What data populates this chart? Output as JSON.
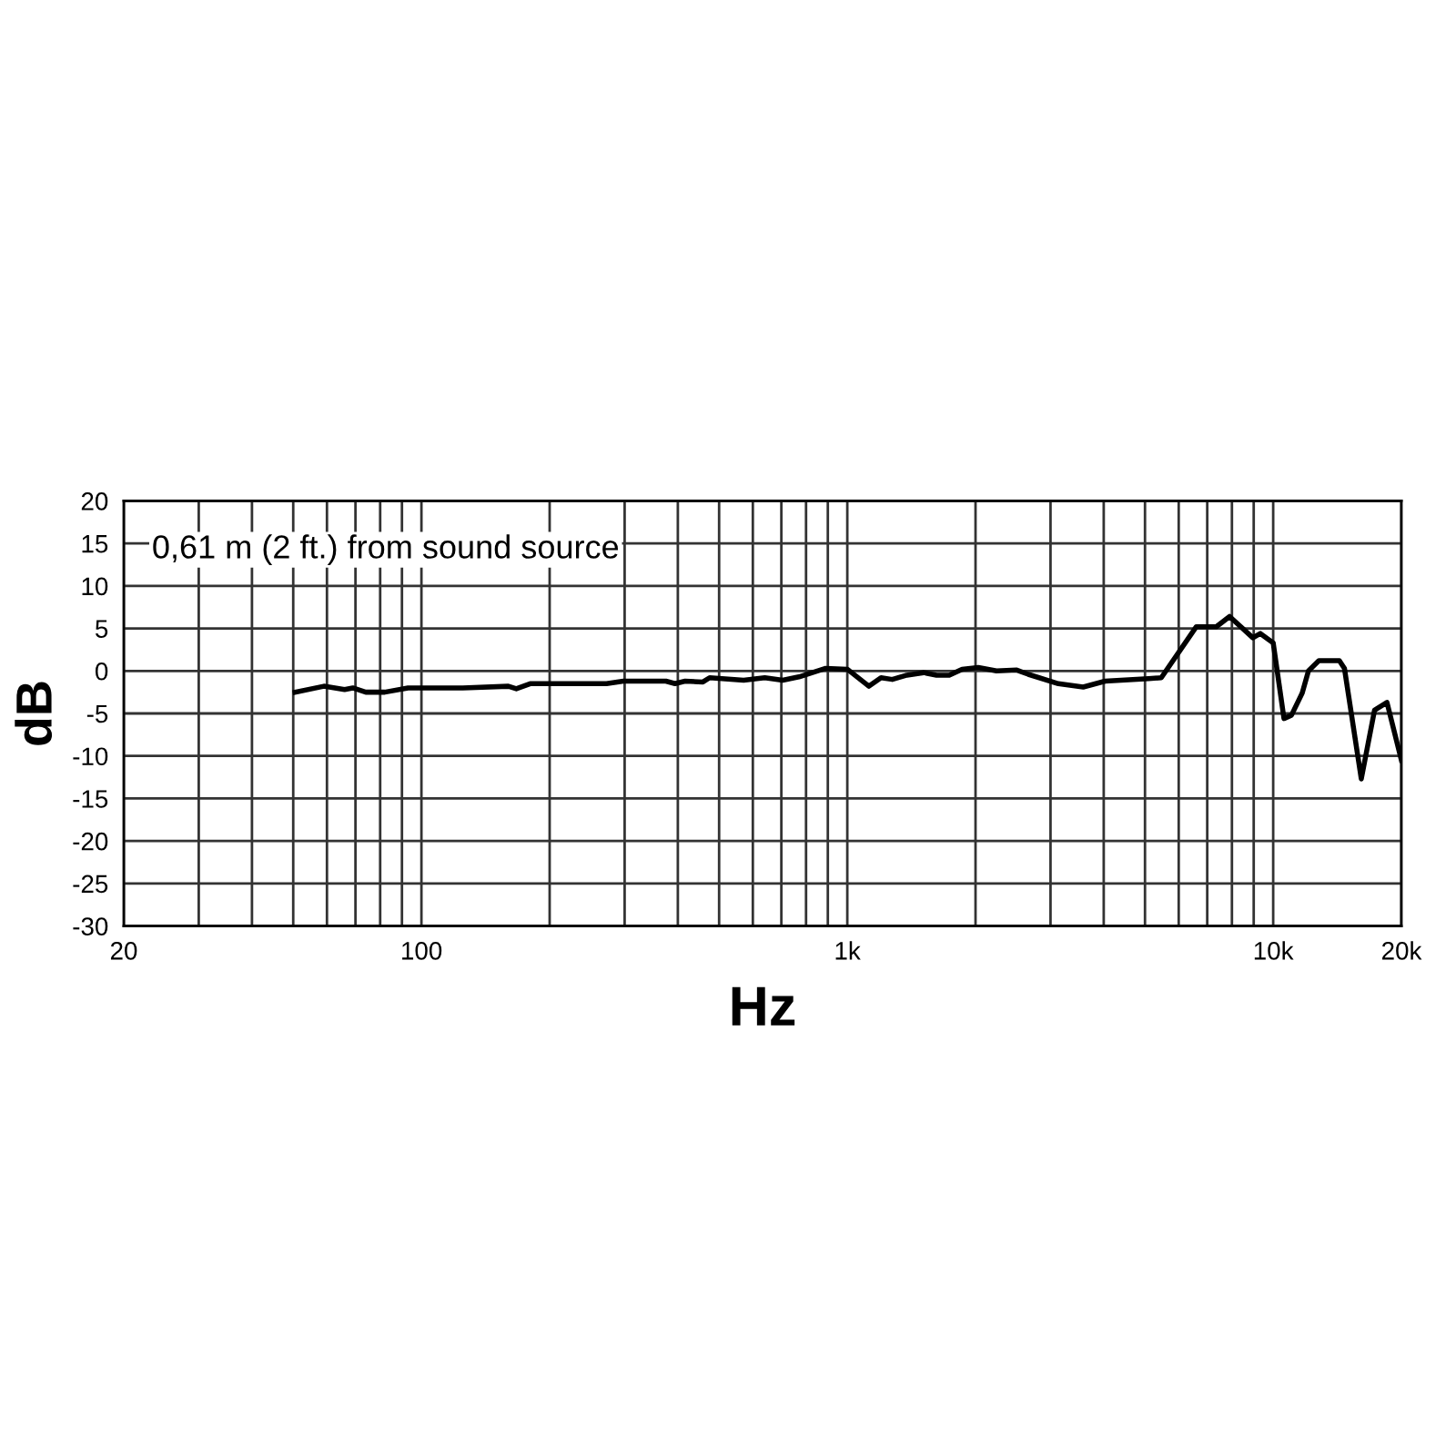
{
  "chart_data": {
    "type": "line",
    "xlabel": "Hz",
    "ylabel": "dB",
    "log": "x",
    "annotations": [
      "0,61 m (2 ft.) from sound source"
    ],
    "x": [
      50.5,
      59,
      66,
      69,
      74,
      82,
      93,
      125,
      160,
      167,
      180,
      272,
      298,
      375,
      394,
      416,
      458,
      475,
      571,
      640,
      705,
      770,
      890,
      1000,
      1124,
      1200,
      1275,
      1380,
      1510,
      1620,
      1735,
      1860,
      2030,
      2240,
      2500,
      2660,
      3130,
      3580,
      4030,
      5100,
      5460,
      6600,
      7350,
      7900,
      8960,
      9330,
      10000,
      10600,
      11040,
      11700,
      12100,
      12800,
      14300,
      14700,
      16100,
      17300,
      18500,
      20000
    ],
    "series": [
      {
        "color": "#000000",
        "values": [
          -2.5,
          -1.8,
          -2.2,
          -2.0,
          -2.5,
          -2.5,
          -2.0,
          -2.0,
          -1.8,
          -2.1,
          -1.5,
          -1.5,
          -1.2,
          -1.2,
          -1.5,
          -1.2,
          -1.3,
          -0.8,
          -1.1,
          -0.8,
          -1.1,
          -0.7,
          0.3,
          0.2,
          -1.8,
          -0.8,
          -1.0,
          -0.5,
          -0.2,
          -0.5,
          -0.5,
          0.2,
          0.4,
          0.0,
          0.1,
          -0.4,
          -1.5,
          -1.9,
          -1.2,
          -0.9,
          -0.8,
          5.2,
          5.2,
          6.4,
          3.9,
          4.4,
          3.3,
          -5.6,
          -5.2,
          -2.6,
          0.0,
          1.2,
          1.2,
          0.3,
          -12.7,
          -4.6,
          -3.7,
          -10.5
        ]
      }
    ],
    "xlim": [
      20,
      20000
    ],
    "ylim": [
      -30,
      20
    ],
    "xticks": [
      20,
      {
        "value": 30,
        "label": null
      },
      {
        "value": 40,
        "label": null
      },
      {
        "value": 50,
        "label": null
      },
      {
        "value": 60,
        "label": null
      },
      {
        "value": 70,
        "label": null
      },
      {
        "value": 80,
        "label": null
      },
      {
        "value": 90,
        "label": null
      },
      100,
      {
        "value": 200,
        "label": null
      },
      {
        "value": 300,
        "label": null
      },
      {
        "value": 400,
        "label": null
      },
      {
        "value": 500,
        "label": null
      },
      {
        "value": 600,
        "label": null
      },
      {
        "value": 700,
        "label": null
      },
      {
        "value": 800,
        "label": null
      },
      {
        "value": 900,
        "label": null
      },
      {
        "value": 1000,
        "label": "1k"
      },
      {
        "value": 2000,
        "label": null
      },
      {
        "value": 3000,
        "label": null
      },
      {
        "value": 4000,
        "label": null
      },
      {
        "value": 5000,
        "label": null
      },
      {
        "value": 6000,
        "label": null
      },
      {
        "value": 7000,
        "label": null
      },
      {
        "value": 8000,
        "label": null
      },
      {
        "value": 9000,
        "label": null
      },
      {
        "value": 10000,
        "label": "10k"
      },
      {
        "value": 20000,
        "label": "20k"
      }
    ],
    "yticks": [
      -30,
      -25,
      -20,
      -15,
      -10,
      -5,
      0,
      5,
      10,
      15,
      20
    ],
    "grid": true,
    "marker": "none",
    "line_style": "solid",
    "legend": false
  }
}
